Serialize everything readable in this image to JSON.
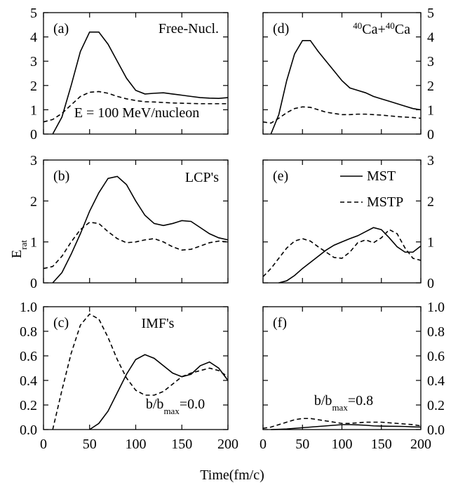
{
  "figure": {
    "xlabel": "Time(fm/c)",
    "ylabel": [
      {
        "text": "E"
      },
      {
        "text": "rat",
        "shift": "sub"
      }
    ]
  },
  "chart_data": [
    {
      "type": "line",
      "label": "(a)",
      "yaxis_side": "left",
      "show_xtick_labels": false,
      "annotations": [
        [
          {
            "text": "Free-Nucl."
          }
        ],
        [
          {
            "text": "E = 100 MeV/nucleon"
          }
        ]
      ],
      "x": [
        0,
        10,
        20,
        30,
        40,
        50,
        60,
        70,
        80,
        90,
        100,
        110,
        120,
        130,
        140,
        150,
        160,
        170,
        180,
        190,
        200
      ],
      "xlim": [
        0,
        200
      ],
      "xticks": [
        0,
        50,
        100,
        150,
        200
      ],
      "ylim": [
        0,
        5
      ],
      "yticks": [
        0,
        1,
        2,
        3,
        4,
        5
      ],
      "series": [
        {
          "color": "#000000",
          "dashed": false,
          "values": [
            null,
            0,
            0.7,
            2.0,
            3.4,
            4.2,
            4.2,
            3.7,
            3.0,
            2.3,
            1.8,
            1.65,
            1.68,
            1.7,
            1.65,
            1.6,
            1.55,
            1.5,
            1.48,
            1.47,
            1.5
          ]
        },
        {
          "color": "#000000",
          "dashed": true,
          "values": [
            0.5,
            0.6,
            0.85,
            1.2,
            1.55,
            1.72,
            1.75,
            1.68,
            1.55,
            1.45,
            1.38,
            1.33,
            1.32,
            1.3,
            1.28,
            1.27,
            1.26,
            1.25,
            1.25,
            1.25,
            1.25
          ]
        }
      ]
    },
    {
      "type": "line",
      "label": "(b)",
      "yaxis_side": "left",
      "show_xtick_labels": false,
      "annotations": [
        [
          {
            "text": "LCP's"
          }
        ]
      ],
      "x": [
        0,
        10,
        20,
        30,
        40,
        50,
        60,
        70,
        80,
        90,
        100,
        110,
        120,
        130,
        140,
        150,
        160,
        170,
        180,
        190,
        200
      ],
      "xlim": [
        0,
        200
      ],
      "xticks": [
        0,
        50,
        100,
        150,
        200
      ],
      "ylim": [
        0,
        3
      ],
      "yticks": [
        0,
        1,
        2,
        3
      ],
      "series": [
        {
          "color": "#000000",
          "dashed": false,
          "values": [
            null,
            0,
            0.25,
            0.7,
            1.2,
            1.75,
            2.2,
            2.55,
            2.6,
            2.4,
            2.0,
            1.65,
            1.45,
            1.4,
            1.45,
            1.52,
            1.5,
            1.35,
            1.2,
            1.1,
            1.05
          ]
        },
        {
          "color": "#000000",
          "dashed": true,
          "values": [
            0.35,
            0.4,
            0.65,
            1.0,
            1.3,
            1.48,
            1.45,
            1.25,
            1.08,
            0.98,
            1.0,
            1.05,
            1.08,
            1.0,
            0.88,
            0.8,
            0.82,
            0.9,
            0.98,
            1.02,
            1.0
          ]
        }
      ]
    },
    {
      "type": "line",
      "label": "(c)",
      "yaxis_side": "left",
      "show_xtick_labels": true,
      "annotations": [
        [
          {
            "text": "IMF's"
          }
        ],
        [
          {
            "text": "b/b"
          },
          {
            "text": "max",
            "shift": "sub"
          },
          {
            "text": "=0.0"
          }
        ]
      ],
      "x": [
        0,
        10,
        20,
        30,
        40,
        50,
        60,
        70,
        80,
        90,
        100,
        110,
        120,
        130,
        140,
        150,
        160,
        170,
        180,
        190,
        200
      ],
      "xlim": [
        0,
        200
      ],
      "xticks": [
        0,
        50,
        100,
        150,
        200
      ],
      "ylim": [
        0,
        1
      ],
      "yticks": [
        {
          "value": 0,
          "label": "0.0"
        },
        0.2,
        0.4,
        0.6,
        0.8,
        {
          "value": 1,
          "label": "1.0"
        }
      ],
      "series": [
        {
          "color": "#000000",
          "dashed": false,
          "values": [
            null,
            null,
            null,
            null,
            null,
            0,
            0.05,
            0.15,
            0.3,
            0.45,
            0.57,
            0.61,
            0.58,
            0.52,
            0.46,
            0.43,
            0.45,
            0.52,
            0.55,
            0.5,
            0.4
          ]
        },
        {
          "color": "#000000",
          "dashed": true,
          "values": [
            null,
            0,
            0.32,
            0.62,
            0.85,
            0.94,
            0.9,
            0.75,
            0.57,
            0.42,
            0.32,
            0.28,
            0.28,
            0.31,
            0.37,
            0.43,
            0.46,
            0.48,
            0.5,
            0.48,
            0.43
          ]
        }
      ]
    },
    {
      "type": "line",
      "label": "(d)",
      "yaxis_side": "right",
      "show_xtick_labels": false,
      "annotations": [
        [
          {
            "text": "40",
            "shift": "super"
          },
          {
            "text": "Ca+"
          },
          {
            "text": "40",
            "shift": "super"
          },
          {
            "text": "Ca"
          }
        ]
      ],
      "x": [
        0,
        10,
        20,
        30,
        40,
        50,
        60,
        70,
        80,
        90,
        100,
        110,
        120,
        130,
        140,
        150,
        160,
        170,
        180,
        190,
        200
      ],
      "xlim": [
        0,
        200
      ],
      "xticks": [
        0,
        50,
        100,
        150,
        200
      ],
      "ylim": [
        0,
        5
      ],
      "yticks": [
        0,
        1,
        2,
        3,
        4,
        5
      ],
      "series": [
        {
          "color": "#000000",
          "dashed": false,
          "values": [
            null,
            0,
            0.8,
            2.2,
            3.3,
            3.85,
            3.85,
            3.4,
            3.0,
            2.6,
            2.2,
            1.9,
            1.8,
            1.7,
            1.55,
            1.45,
            1.35,
            1.25,
            1.15,
            1.05,
            1.0
          ]
        },
        {
          "color": "#000000",
          "dashed": true,
          "values": [
            0.5,
            0.45,
            0.65,
            0.88,
            1.05,
            1.12,
            1.1,
            1.0,
            0.9,
            0.85,
            0.8,
            0.8,
            0.82,
            0.82,
            0.8,
            0.78,
            0.75,
            0.72,
            0.7,
            0.68,
            0.65
          ]
        }
      ]
    },
    {
      "type": "line",
      "label": "(e)",
      "yaxis_side": "right",
      "show_xtick_labels": false,
      "legend": "upper right",
      "annotations": [],
      "x": [
        0,
        10,
        20,
        30,
        40,
        50,
        60,
        70,
        80,
        90,
        100,
        110,
        120,
        130,
        140,
        150,
        160,
        170,
        180,
        190,
        200
      ],
      "xlim": [
        0,
        200
      ],
      "xticks": [
        0,
        50,
        100,
        150,
        200
      ],
      "ylim": [
        0,
        3
      ],
      "yticks": [
        0,
        1,
        2,
        3
      ],
      "series": [
        {
          "name": "MST",
          "color": "#000000",
          "dashed": false,
          "values": [
            null,
            null,
            0,
            0.05,
            0.18,
            0.35,
            0.5,
            0.65,
            0.8,
            0.92,
            1.0,
            1.08,
            1.15,
            1.25,
            1.35,
            1.3,
            1.1,
            0.88,
            0.75,
            0.75,
            0.9
          ]
        },
        {
          "name": "MSTP",
          "color": "#000000",
          "dashed": true,
          "values": [
            0.15,
            0.35,
            0.6,
            0.85,
            1.02,
            1.08,
            1.02,
            0.88,
            0.75,
            0.62,
            0.6,
            0.75,
            0.98,
            1.05,
            0.98,
            1.1,
            1.3,
            1.2,
            0.85,
            0.6,
            0.55
          ]
        }
      ]
    },
    {
      "type": "line",
      "label": "(f)",
      "yaxis_side": "right",
      "show_xtick_labels": true,
      "annotations": [
        [
          {
            "text": "b/b"
          },
          {
            "text": "max",
            "shift": "sub"
          },
          {
            "text": "=0.8"
          }
        ]
      ],
      "x": [
        0,
        10,
        20,
        30,
        40,
        50,
        60,
        70,
        80,
        90,
        100,
        110,
        120,
        130,
        140,
        150,
        160,
        170,
        180,
        190,
        200
      ],
      "xlim": [
        0,
        200
      ],
      "xticks": [
        0,
        50,
        100,
        150,
        200
      ],
      "ylim": [
        0,
        1
      ],
      "yticks": [
        {
          "value": 0,
          "label": "0.0"
        },
        0.2,
        0.4,
        0.6,
        0.8,
        {
          "value": 1,
          "label": "1.0"
        }
      ],
      "series": [
        {
          "color": "#000000",
          "dashed": false,
          "values": [
            null,
            0,
            0.002,
            0.005,
            0.01,
            0.015,
            0.02,
            0.025,
            0.03,
            0.035,
            0.04,
            0.04,
            0.038,
            0.035,
            0.03,
            0.028,
            0.027,
            0.026,
            0.025,
            0.022,
            0.02
          ]
        },
        {
          "color": "#000000",
          "dashed": true,
          "values": [
            0.01,
            0.02,
            0.04,
            0.06,
            0.08,
            0.09,
            0.09,
            0.08,
            0.07,
            0.06,
            0.05,
            0.05,
            0.055,
            0.06,
            0.06,
            0.06,
            0.055,
            0.05,
            0.045,
            0.04,
            0.03
          ]
        }
      ]
    }
  ]
}
